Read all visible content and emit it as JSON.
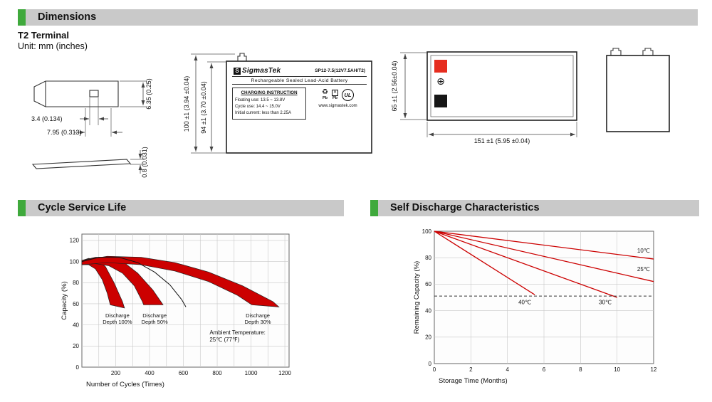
{
  "page": {
    "background": "#ffffff",
    "accent_green": "#3fa93c",
    "header_gray": "#c9c9c9",
    "chart_red": "#cc0000",
    "terminal_red": "#e62d1f"
  },
  "dimensions_section": {
    "title": "Dimensions",
    "terminal_type": "T2 Terminal",
    "unit_note": "Unit: mm (inches)",
    "terminal_drawing": {
      "hole_width": "3.4 (0.134)",
      "tab_width": "7.95 (0.313)",
      "tab_height": "6.35 (0.25)",
      "thickness": "0.8 (0.031)"
    },
    "front_view": {
      "overall_height": "100 ±1 (3.94 ±0.04)",
      "container_height": "94 ±1 (3.70 ±0.04)",
      "label": {
        "logo_text": "S",
        "brand": "SigmasTek",
        "model": "SP12-7.5(12V7.5AH/T2)",
        "subtitle": "Rechargeable Sealed Lead-Acid Battery",
        "charging_title": "CHARGING INSTRUCTION",
        "charging_lines": [
          "Floating use: 13.5 ~ 13.8V",
          "Cycle use: 14.4 ~ 15.0V",
          "Initial current: less than 2.25A"
        ],
        "pb_label": "Pb",
        "ul_label": "UL",
        "website": "www.sigmastek.com"
      }
    },
    "top_view": {
      "depth_dim": "65 ±1 (2.56±0.04)",
      "width_dim": "151 ±1 (5.95 ±0.04)",
      "plus_symbol": "⊕"
    }
  },
  "chart_data": [
    {
      "type": "area",
      "title": "Cycle Service Life",
      "xlabel": "Number of Cycles (Times)",
      "ylabel": "Capacity (%)",
      "xlim": [
        0,
        1225
      ],
      "ylim": [
        0,
        126
      ],
      "xticks": [
        200,
        400,
        600,
        800,
        1000,
        1200
      ],
      "yticks": [
        0,
        20,
        40,
        60,
        80,
        100,
        120
      ],
      "grid_x": [
        100,
        200,
        300,
        400,
        500,
        600,
        700,
        800,
        900,
        1000,
        1100,
        1200
      ],
      "grid_y": [
        20,
        40,
        60,
        80,
        100,
        120
      ],
      "band_color": "#cc0000",
      "bands": [
        {
          "label_lines": [
            "Discharge",
            "Depth 100%"
          ],
          "label_at": [
            210,
            47
          ],
          "upper": [
            [
              0,
              101
            ],
            [
              40,
              103
            ],
            [
              90,
              102
            ],
            [
              140,
              95
            ],
            [
              190,
              80
            ],
            [
              240,
              62
            ],
            [
              252,
              56
            ]
          ],
          "lower": [
            [
              0,
              97
            ],
            [
              40,
              97
            ],
            [
              80,
              93
            ],
            [
              120,
              83
            ],
            [
              150,
              70
            ],
            [
              168,
              59
            ]
          ]
        },
        {
          "label_lines": [
            "Discharge",
            "Depth 50%"
          ],
          "label_at": [
            430,
            47
          ],
          "upper": [
            [
              0,
              101
            ],
            [
              80,
              104
            ],
            [
              160,
              104
            ],
            [
              250,
              99
            ],
            [
              330,
              89
            ],
            [
              420,
              73
            ],
            [
              480,
              59
            ]
          ],
          "lower": [
            [
              0,
              97
            ],
            [
              80,
              98
            ],
            [
              160,
              96
            ],
            [
              240,
              89
            ],
            [
              310,
              77
            ],
            [
              358,
              62
            ],
            [
              365,
              59
            ]
          ]
        },
        {
          "label_lines": [
            "Discharge",
            "Depth 30%"
          ],
          "label_at": [
            1040,
            47
          ],
          "upper": [
            [
              0,
              101
            ],
            [
              150,
              105
            ],
            [
              350,
              104
            ],
            [
              550,
              99
            ],
            [
              750,
              90
            ],
            [
              950,
              77
            ],
            [
              1130,
              62
            ],
            [
              1165,
              57
            ]
          ],
          "lower": [
            [
              0,
              97
            ],
            [
              150,
              99
            ],
            [
              350,
              97
            ],
            [
              550,
              91
            ],
            [
              750,
              81
            ],
            [
              920,
              68
            ],
            [
              1005,
              59
            ]
          ]
        }
      ],
      "envelope": [
        [
          0,
          100
        ],
        [
          100,
          104
        ],
        [
          220,
          104
        ],
        [
          330,
          99
        ],
        [
          430,
          90
        ],
        [
          520,
          78
        ],
        [
          590,
          64
        ],
        [
          615,
          57
        ]
      ],
      "annotation_lines": [
        "Ambient Temperature:",
        "25℃ (77℉)"
      ],
      "annotation_at": [
        755,
        31
      ]
    },
    {
      "type": "line",
      "title": "Self Discharge Characteristics",
      "xlabel": "Storage Time (Months)",
      "ylabel": "Remaining Capacity (%)",
      "xlim": [
        0,
        12
      ],
      "ylim": [
        0,
        100
      ],
      "xticks": [
        0,
        2,
        4,
        6,
        8,
        10,
        12
      ],
      "yticks": [
        0,
        20,
        40,
        60,
        80,
        100
      ],
      "grid_x": [
        2,
        4,
        6,
        8,
        10
      ],
      "grid_y": [
        20,
        40,
        60,
        80
      ],
      "line_color": "#cc0000",
      "series": [
        {
          "name": "10℃",
          "points": [
            [
              0,
              100
            ],
            [
              12,
              79
            ]
          ],
          "label_at": [
            11.1,
            84
          ]
        },
        {
          "name": "25℃",
          "points": [
            [
              0,
              100
            ],
            [
              12,
              62
            ]
          ],
          "label_at": [
            11.1,
            70
          ]
        },
        {
          "name": "30℃",
          "points": [
            [
              0,
              100
            ],
            [
              10,
              50
            ]
          ],
          "label_at": [
            9.0,
            45
          ]
        },
        {
          "name": "40℃",
          "points": [
            [
              0,
              100
            ],
            [
              5.5,
              52
            ]
          ],
          "label_at": [
            4.6,
            45
          ]
        }
      ],
      "dashed_y": 51
    }
  ]
}
